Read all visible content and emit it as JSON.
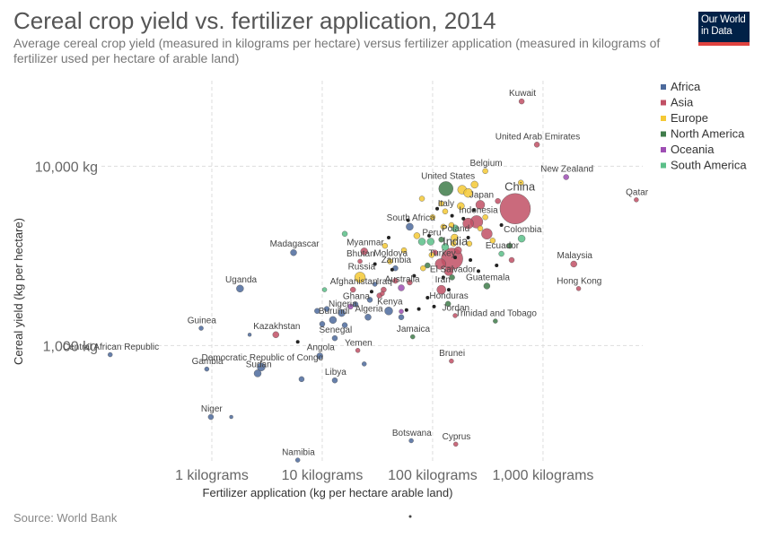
{
  "header": {
    "title": "Cereal crop yield vs. fertilizer application, 2014",
    "subtitle": "Average cereal crop yield (measured in kilograms per hectare) versus fertilizer application (measured in kilograms of fertilizer used per hectare of arable land)",
    "logo_line1": "Our World",
    "logo_line2": "in Data"
  },
  "footer": {
    "source": "Source: World Bank"
  },
  "colors": {
    "Africa": "#4c6a9c",
    "Asia": "#c15065",
    "Europe": "#f5c935",
    "North America": "#3f7c4a",
    "Oceania": "#9e4eb3",
    "South America": "#5bbf88",
    "Other": "#222222"
  },
  "chart_data": {
    "type": "scatter",
    "title": "Cereal crop yield vs. fertilizer application, 2014",
    "xlabel": "Fertilizer application (kg per hectare arable land)",
    "ylabel": "Cereal yield (kg per hectare)",
    "x_scale": "log",
    "y_scale": "log",
    "xlim": [
      0.1,
      8000
    ],
    "ylim": [
      225,
      30000
    ],
    "x_ticks": [
      {
        "value": 1,
        "label": "1 kilograms"
      },
      {
        "value": 10,
        "label": "10 kilograms"
      },
      {
        "value": 100,
        "label": "100 kilograms"
      },
      {
        "value": 1000,
        "label": "1,000 kilograms"
      }
    ],
    "y_ticks": [
      {
        "value": 1000,
        "label": "1,000 kg"
      },
      {
        "value": 10000,
        "label": "10,000 kg"
      }
    ],
    "grid": true,
    "legend_position": "top-right",
    "legend": [
      "Africa",
      "Asia",
      "Europe",
      "North America",
      "Oceania",
      "South America"
    ],
    "points": [
      {
        "label": "Kuwait",
        "x": 640,
        "y": 23000,
        "r": 3,
        "region": "Asia"
      },
      {
        "label": "United Arab Emirates",
        "x": 880,
        "y": 13200,
        "r": 3,
        "region": "Asia"
      },
      {
        "label": "New Zealand",
        "x": 1620,
        "y": 8700,
        "r": 3,
        "region": "Oceania"
      },
      {
        "label": "Qatar",
        "x": 7000,
        "y": 6500,
        "r": 2.5,
        "region": "Asia"
      },
      {
        "label": "Belgium",
        "x": 300,
        "y": 9400,
        "r": 3,
        "region": "Europe"
      },
      {
        "label": "United States",
        "x": 132,
        "y": 7500,
        "r": 8,
        "region": "North America"
      },
      {
        "label": "China",
        "x": 560,
        "y": 5800,
        "r": 17,
        "region": "Asia"
      },
      {
        "label": "Japan",
        "x": 270,
        "y": 6100,
        "r": 5,
        "region": "Asia"
      },
      {
        "label": "Italy",
        "x": 130,
        "y": 5600,
        "r": 3,
        "region": "Europe"
      },
      {
        "label": "Indonesia",
        "x": 250,
        "y": 4900,
        "r": 7,
        "region": "Asia"
      },
      {
        "label": "South Africa",
        "x": 62,
        "y": 4600,
        "r": 4,
        "region": "Africa"
      },
      {
        "label": "Colombia",
        "x": 640,
        "y": 3950,
        "r": 4,
        "region": "South America"
      },
      {
        "label": "Poland",
        "x": 158,
        "y": 4000,
        "r": 4,
        "region": "Europe"
      },
      {
        "label": "Peru",
        "x": 96,
        "y": 3800,
        "r": 4,
        "region": "South America"
      },
      {
        "label": "India",
        "x": 150,
        "y": 3050,
        "r": 12,
        "region": "Asia"
      },
      {
        "label": "Ecuador",
        "x": 420,
        "y": 3250,
        "r": 3,
        "region": "South America"
      },
      {
        "label": "Myanmar",
        "x": 24,
        "y": 3350,
        "r": 4,
        "region": "Asia"
      },
      {
        "label": "Madagascar",
        "x": 5.5,
        "y": 3300,
        "r": 3.5,
        "region": "Africa"
      },
      {
        "label": "Bhutan",
        "x": 22,
        "y": 2950,
        "r": 2.5,
        "region": "Asia"
      },
      {
        "label": "Moldova",
        "x": 41,
        "y": 2950,
        "r": 3,
        "region": "Europe"
      },
      {
        "label": "Zambia",
        "x": 46,
        "y": 2700,
        "r": 3,
        "region": "Africa"
      },
      {
        "label": "Turkey",
        "x": 118,
        "y": 2850,
        "r": 6,
        "region": "Asia"
      },
      {
        "label": "El Salvador",
        "x": 150,
        "y": 2400,
        "r": 3,
        "region": "North America"
      },
      {
        "label": "Malaysia",
        "x": 1900,
        "y": 2850,
        "r": 3.5,
        "region": "Asia"
      },
      {
        "label": "Russia",
        "x": 22,
        "y": 2400,
        "r": 6,
        "region": "Europe"
      },
      {
        "label": "Afghanistan",
        "x": 19,
        "y": 2050,
        "r": 3,
        "region": "Asia"
      },
      {
        "label": "Iraq",
        "x": 36,
        "y": 2050,
        "r": 3,
        "region": "Asia"
      },
      {
        "label": "Australia",
        "x": 52,
        "y": 2100,
        "r": 3.5,
        "region": "Oceania"
      },
      {
        "label": "Iran",
        "x": 120,
        "y": 2050,
        "r": 5,
        "region": "Asia"
      },
      {
        "label": "Guatemala",
        "x": 310,
        "y": 2150,
        "r": 3.5,
        "region": "North America"
      },
      {
        "label": "Hong Kong",
        "x": 2100,
        "y": 2080,
        "r": 2.5,
        "region": "Asia"
      },
      {
        "label": "Uganda",
        "x": 1.8,
        "y": 2080,
        "r": 4,
        "region": "Africa"
      },
      {
        "label": "Ghana",
        "x": 20,
        "y": 1700,
        "r": 3,
        "region": "Africa"
      },
      {
        "label": "Kenya",
        "x": 40,
        "y": 1560,
        "r": 4.5,
        "region": "Africa"
      },
      {
        "label": "Honduras",
        "x": 138,
        "y": 1710,
        "r": 3,
        "region": "North America"
      },
      {
        "label": "Nigeria",
        "x": 15,
        "y": 1520,
        "r": 4,
        "region": "Africa"
      },
      {
        "label": "Algeria",
        "x": 26,
        "y": 1440,
        "r": 3.5,
        "region": "Africa"
      },
      {
        "label": "Burundi",
        "x": 12.5,
        "y": 1390,
        "r": 4,
        "region": "Africa"
      },
      {
        "label": "Jordan",
        "x": 160,
        "y": 1470,
        "r": 2.5,
        "region": "Asia"
      },
      {
        "label": "Trinidad and Tobago",
        "x": 370,
        "y": 1370,
        "r": 2.5,
        "region": "North America"
      },
      {
        "label": "Guinea",
        "x": 0.8,
        "y": 1250,
        "r": 2.5,
        "region": "Africa"
      },
      {
        "label": "Kazakhstan",
        "x": 3.8,
        "y": 1150,
        "r": 3.5,
        "region": "Asia"
      },
      {
        "label": "Senegal",
        "x": 13,
        "y": 1100,
        "r": 3,
        "region": "Africa"
      },
      {
        "label": "Jamaica",
        "x": 66,
        "y": 1120,
        "r": 2.5,
        "region": "North America"
      },
      {
        "label": "Yemen",
        "x": 21,
        "y": 940,
        "r": 2.5,
        "region": "Asia"
      },
      {
        "label": "Central African Republic",
        "x": 0.12,
        "y": 890,
        "r": 2.5,
        "region": "Africa"
      },
      {
        "label": "Angola",
        "x": 9.5,
        "y": 875,
        "r": 3.5,
        "region": "Africa"
      },
      {
        "label": "Brunei",
        "x": 148,
        "y": 820,
        "r": 2.5,
        "region": "Asia"
      },
      {
        "label": "Democratic Republic of Congo",
        "x": 2.8,
        "y": 760,
        "r": 4.5,
        "region": "Africa"
      },
      {
        "label": "Gambia",
        "x": 0.9,
        "y": 740,
        "r": 2.5,
        "region": "Africa"
      },
      {
        "label": "Sudan",
        "x": 2.6,
        "y": 700,
        "r": 4,
        "region": "Africa"
      },
      {
        "label": "Libya",
        "x": 13,
        "y": 640,
        "r": 3,
        "region": "Africa"
      },
      {
        "label": "Niger",
        "x": 0.98,
        "y": 400,
        "r": 3,
        "region": "Africa"
      },
      {
        "label": "Botswana",
        "x": 64,
        "y": 295,
        "r": 2.5,
        "region": "Africa"
      },
      {
        "label": "Cyprus",
        "x": 162,
        "y": 282,
        "r": 2.5,
        "region": "Asia"
      },
      {
        "label": "Namibia",
        "x": 6,
        "y": 230,
        "r": 2.5,
        "region": "Africa"
      },
      {
        "label": "",
        "x": 1.5,
        "y": 400,
        "r": 2,
        "region": "Africa"
      },
      {
        "label": "",
        "x": 2.2,
        "y": 1150,
        "r": 2,
        "region": "Africa"
      },
      {
        "label": "",
        "x": 6.5,
        "y": 650,
        "r": 3,
        "region": "Africa"
      },
      {
        "label": "",
        "x": 11,
        "y": 1600,
        "r": 3,
        "region": "Africa"
      },
      {
        "label": "",
        "x": 10,
        "y": 1320,
        "r": 3,
        "region": "Africa"
      },
      {
        "label": "",
        "x": 16,
        "y": 1300,
        "r": 3,
        "region": "Africa"
      },
      {
        "label": "",
        "x": 24,
        "y": 790,
        "r": 2.5,
        "region": "Africa"
      },
      {
        "label": "",
        "x": 52,
        "y": 1440,
        "r": 3,
        "region": "Africa"
      },
      {
        "label": "",
        "x": 27,
        "y": 1800,
        "r": 3,
        "region": "Africa"
      },
      {
        "label": "",
        "x": 9,
        "y": 1560,
        "r": 3,
        "region": "Africa"
      },
      {
        "label": "",
        "x": 30,
        "y": 2200,
        "r": 2.5,
        "region": "Africa"
      },
      {
        "label": "",
        "x": 33,
        "y": 1900,
        "r": 3,
        "region": "Asia"
      },
      {
        "label": "",
        "x": 46,
        "y": 2300,
        "r": 3,
        "region": "Asia"
      },
      {
        "label": "",
        "x": 140,
        "y": 2600,
        "r": 5,
        "region": "Asia"
      },
      {
        "label": "",
        "x": 210,
        "y": 4800,
        "r": 6,
        "region": "Asia"
      },
      {
        "label": "",
        "x": 310,
        "y": 4200,
        "r": 6,
        "region": "Asia"
      },
      {
        "label": "",
        "x": 390,
        "y": 6400,
        "r": 3,
        "region": "Asia"
      },
      {
        "label": "",
        "x": 170,
        "y": 3400,
        "r": 4,
        "region": "Asia"
      },
      {
        "label": "",
        "x": 520,
        "y": 3000,
        "r": 3,
        "region": "Asia"
      },
      {
        "label": "",
        "x": 105,
        "y": 3300,
        "r": 3,
        "region": "Asia"
      },
      {
        "label": "",
        "x": 62,
        "y": 2250,
        "r": 3,
        "region": "Asia"
      },
      {
        "label": "",
        "x": 35,
        "y": 1950,
        "r": 2.5,
        "region": "Asia"
      },
      {
        "label": "",
        "x": 185,
        "y": 7400,
        "r": 5,
        "region": "Europe"
      },
      {
        "label": "",
        "x": 210,
        "y": 7100,
        "r": 5,
        "region": "Europe"
      },
      {
        "label": "",
        "x": 240,
        "y": 7900,
        "r": 4,
        "region": "Europe"
      },
      {
        "label": "",
        "x": 180,
        "y": 6000,
        "r": 4,
        "region": "Europe"
      },
      {
        "label": "",
        "x": 120,
        "y": 6200,
        "r": 3,
        "region": "Europe"
      },
      {
        "label": "",
        "x": 100,
        "y": 5200,
        "r": 3,
        "region": "Europe"
      },
      {
        "label": "",
        "x": 72,
        "y": 4100,
        "r": 3.5,
        "region": "Europe"
      },
      {
        "label": "",
        "x": 125,
        "y": 4600,
        "r": 3,
        "region": "Europe"
      },
      {
        "label": "",
        "x": 148,
        "y": 4700,
        "r": 3,
        "region": "Europe"
      },
      {
        "label": "",
        "x": 155,
        "y": 3700,
        "r": 3,
        "region": "Europe"
      },
      {
        "label": "",
        "x": 215,
        "y": 3700,
        "r": 3,
        "region": "Europe"
      },
      {
        "label": "",
        "x": 270,
        "y": 4500,
        "r": 3,
        "region": "Europe"
      },
      {
        "label": "",
        "x": 98,
        "y": 3200,
        "r": 3,
        "region": "Europe"
      },
      {
        "label": "",
        "x": 55,
        "y": 3400,
        "r": 3,
        "region": "Europe"
      },
      {
        "label": "",
        "x": 37,
        "y": 3600,
        "r": 3,
        "region": "Europe"
      },
      {
        "label": "",
        "x": 350,
        "y": 3850,
        "r": 3,
        "region": "Europe"
      },
      {
        "label": "",
        "x": 80,
        "y": 6600,
        "r": 3,
        "region": "Europe"
      },
      {
        "label": "",
        "x": 630,
        "y": 8100,
        "r": 3,
        "region": "Europe"
      },
      {
        "label": "",
        "x": 82,
        "y": 2700,
        "r": 3,
        "region": "Europe"
      },
      {
        "label": "",
        "x": 300,
        "y": 5200,
        "r": 3,
        "region": "Europe"
      },
      {
        "label": "",
        "x": 120,
        "y": 3900,
        "r": 3,
        "region": "North America"
      },
      {
        "label": "",
        "x": 90,
        "y": 2800,
        "r": 3,
        "region": "North America"
      },
      {
        "label": "",
        "x": 500,
        "y": 3600,
        "r": 3,
        "region": "North America"
      },
      {
        "label": "",
        "x": 130,
        "y": 3550,
        "r": 4,
        "region": "South America"
      },
      {
        "label": "",
        "x": 80,
        "y": 3800,
        "r": 4,
        "region": "South America"
      },
      {
        "label": "",
        "x": 160,
        "y": 4500,
        "r": 4,
        "region": "South America"
      },
      {
        "label": "",
        "x": 10.5,
        "y": 2050,
        "r": 2.5,
        "region": "South America"
      },
      {
        "label": "",
        "x": 16,
        "y": 4200,
        "r": 3,
        "region": "South America"
      },
      {
        "label": "",
        "x": 18,
        "y": 1650,
        "r": 3,
        "region": "Oceania"
      },
      {
        "label": "",
        "x": 52,
        "y": 1550,
        "r": 2.5,
        "region": "Oceania"
      },
      {
        "label": "",
        "x": 60,
        "y": 5000,
        "r": 2,
        "region": "Other"
      },
      {
        "label": "",
        "x": 93,
        "y": 4100,
        "r": 2,
        "region": "Other"
      },
      {
        "label": "",
        "x": 150,
        "y": 5300,
        "r": 2,
        "region": "Other"
      },
      {
        "label": "",
        "x": 160,
        "y": 3100,
        "r": 2,
        "region": "Other"
      },
      {
        "label": "",
        "x": 125,
        "y": 2400,
        "r": 2,
        "region": "Other"
      },
      {
        "label": "",
        "x": 90,
        "y": 1850,
        "r": 2,
        "region": "Other"
      },
      {
        "label": "",
        "x": 58,
        "y": 1580,
        "r": 2,
        "region": "Other"
      },
      {
        "label": "",
        "x": 68,
        "y": 2450,
        "r": 2,
        "region": "Other"
      },
      {
        "label": "",
        "x": 43,
        "y": 2650,
        "r": 2,
        "region": "Other"
      },
      {
        "label": "",
        "x": 30,
        "y": 2850,
        "r": 2,
        "region": "Other"
      },
      {
        "label": "",
        "x": 220,
        "y": 3000,
        "r": 2,
        "region": "Other"
      },
      {
        "label": "",
        "x": 260,
        "y": 2600,
        "r": 2,
        "region": "Other"
      },
      {
        "label": "",
        "x": 380,
        "y": 2800,
        "r": 2,
        "region": "Other"
      },
      {
        "label": "",
        "x": 420,
        "y": 4700,
        "r": 2,
        "region": "Other"
      },
      {
        "label": "",
        "x": 110,
        "y": 5800,
        "r": 2,
        "region": "Other"
      },
      {
        "label": "",
        "x": 190,
        "y": 5100,
        "r": 2,
        "region": "Other"
      },
      {
        "label": "",
        "x": 235,
        "y": 5700,
        "r": 2,
        "region": "Other"
      },
      {
        "label": "",
        "x": 40,
        "y": 4000,
        "r": 2,
        "region": "Other"
      },
      {
        "label": "",
        "x": 6,
        "y": 1050,
        "r": 2,
        "region": "Other"
      },
      {
        "label": "",
        "x": 28,
        "y": 2000,
        "r": 2,
        "region": "Other"
      },
      {
        "label": "",
        "x": 140,
        "y": 2050,
        "r": 2,
        "region": "Other"
      },
      {
        "label": "",
        "x": 75,
        "y": 1600,
        "r": 2,
        "region": "Other"
      },
      {
        "label": "",
        "x": 103,
        "y": 1650,
        "r": 2,
        "region": "Other"
      },
      {
        "label": "",
        "x": 210,
        "y": 4000,
        "r": 2,
        "region": "Other"
      }
    ]
  }
}
